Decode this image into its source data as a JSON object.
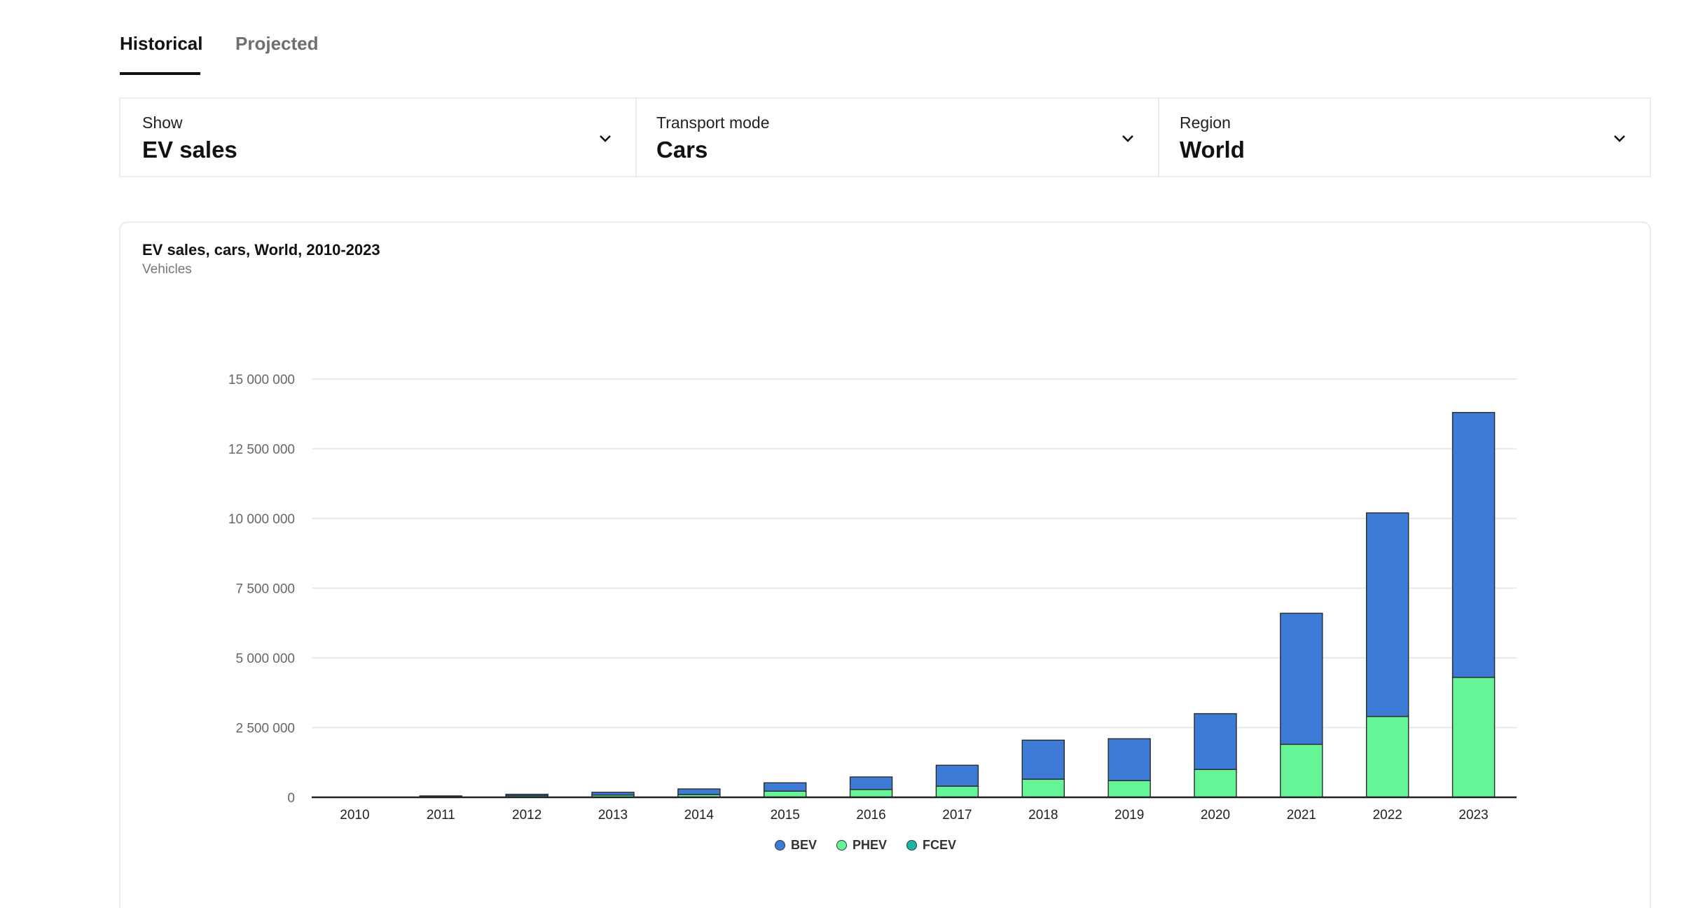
{
  "tabs": [
    {
      "label": "Historical",
      "active": true
    },
    {
      "label": "Projected",
      "active": false
    }
  ],
  "filters": [
    {
      "label": "Show",
      "value": "EV sales"
    },
    {
      "label": "Transport mode",
      "value": "Cars"
    },
    {
      "label": "Region",
      "value": "World"
    }
  ],
  "colors": {
    "BEV": "#3d7bd6",
    "PHEV": "#66f596",
    "FCEV": "#1bb5a8"
  },
  "chart_data": {
    "type": "bar",
    "stacked": true,
    "title": "EV sales, cars, World, 2010-2023",
    "subtitle": "Vehicles",
    "categories": [
      "2010",
      "2011",
      "2012",
      "2013",
      "2014",
      "2015",
      "2016",
      "2017",
      "2018",
      "2019",
      "2020",
      "2021",
      "2022",
      "2023"
    ],
    "series": [
      {
        "name": "BEV",
        "values": [
          0,
          40000,
          50000,
          100000,
          200000,
          300000,
          450000,
          750000,
          1400000,
          1500000,
          2000000,
          4700000,
          7300000,
          9500000
        ]
      },
      {
        "name": "PHEV",
        "values": [
          0,
          10000,
          60000,
          80000,
          100000,
          220000,
          280000,
          400000,
          650000,
          600000,
          1000000,
          1900000,
          2900000,
          4300000
        ]
      },
      {
        "name": "FCEV",
        "values": [
          0,
          0,
          0,
          0,
          0,
          0,
          0,
          0,
          0,
          0,
          0,
          0,
          0,
          0
        ]
      }
    ],
    "yticks": [
      "0",
      "2 500 000",
      "5 000 000",
      "7 500 000",
      "10 000 000",
      "12 500 000",
      "15 000 000"
    ],
    "ylim": [
      0,
      15000000
    ],
    "grid": true,
    "legend_position": "bottom-center"
  }
}
